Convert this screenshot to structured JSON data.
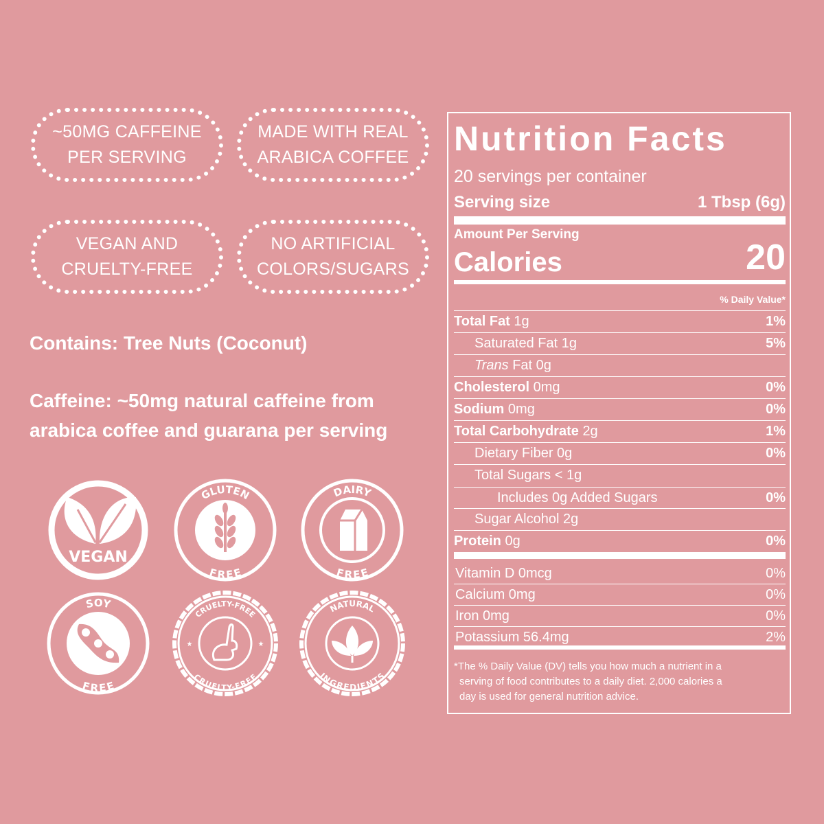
{
  "badges": [
    {
      "lines": [
        "~50MG CAFFEINE",
        "PER SERVING"
      ]
    },
    {
      "lines": [
        "MADE WITH REAL",
        "ARABICA COFFEE"
      ]
    },
    {
      "lines": [
        "VEGAN AND",
        "CRUELTY-FREE"
      ]
    },
    {
      "lines": [
        "NO ARTIFICIAL",
        "COLORS/SUGARS"
      ]
    }
  ],
  "allergens": "Contains: Tree Nuts (Coconut)",
  "caffeine": [
    "Caffeine: ~50mg natural caffeine from",
    "arabica coffee and guarana per serving"
  ],
  "icons": [
    {
      "bottom": "VEGAN"
    },
    {
      "top": "GLUTEN",
      "bottom": "FREE"
    },
    {
      "top": "DAIRY",
      "bottom": "FREE"
    },
    {
      "top": "SOY",
      "bottom": "FREE"
    },
    {
      "top": "CRUELTY-FREE",
      "bottom": "CRUELTY-FREE"
    },
    {
      "top": "NATURAL",
      "bottom": "INGREDIENTS"
    }
  ],
  "nutrition": {
    "title": "Nutrition Facts",
    "servings": "20 servings per container",
    "serving_size_label": "Serving size",
    "serving_size_value": "1 Tbsp (6g)",
    "amount_per_serving": "Amount Per Serving",
    "calories_label": "Calories",
    "calories_value": "20",
    "dv_header": "% Daily Value*",
    "rows": [
      {
        "label": "Total Fat",
        "amount": "1g",
        "dv": "1%"
      },
      {
        "label": "Saturated Fat 1g",
        "dv": "5%"
      },
      {
        "prefix": "Trans",
        "label": "Fat 0g"
      },
      {
        "label": "Cholesterol",
        "amount": "0mg",
        "dv": "0%"
      },
      {
        "label": "Sodium",
        "amount": "0mg",
        "dv": "0%"
      },
      {
        "label": "Total Carbohydrate",
        "amount": "2g",
        "dv": "1%"
      },
      {
        "label": "Dietary Fiber 0g",
        "dv": "0%"
      },
      {
        "label": "Total Sugars < 1g"
      },
      {
        "label": "Includes 0g Added Sugars",
        "dv": "0%"
      },
      {
        "label": "Sugar Alcohol 2g"
      },
      {
        "label": "Protein",
        "amount": "0g",
        "dv": "0%"
      }
    ],
    "vitamins": [
      {
        "label": "Vitamin D 0mcg",
        "dv": "0%"
      },
      {
        "label": "Calcium 0mg",
        "dv": "0%"
      },
      {
        "label": "Iron 0mg",
        "dv": "0%"
      },
      {
        "label": "Potassium 56.4mg",
        "dv": "2%"
      }
    ],
    "footnote": [
      "*The % Daily Value (DV) tells you how much a nutrient in a",
      "serving of food contributes to a daily diet. 2,000 calories a",
      "day is used for general nutrition advice."
    ]
  }
}
